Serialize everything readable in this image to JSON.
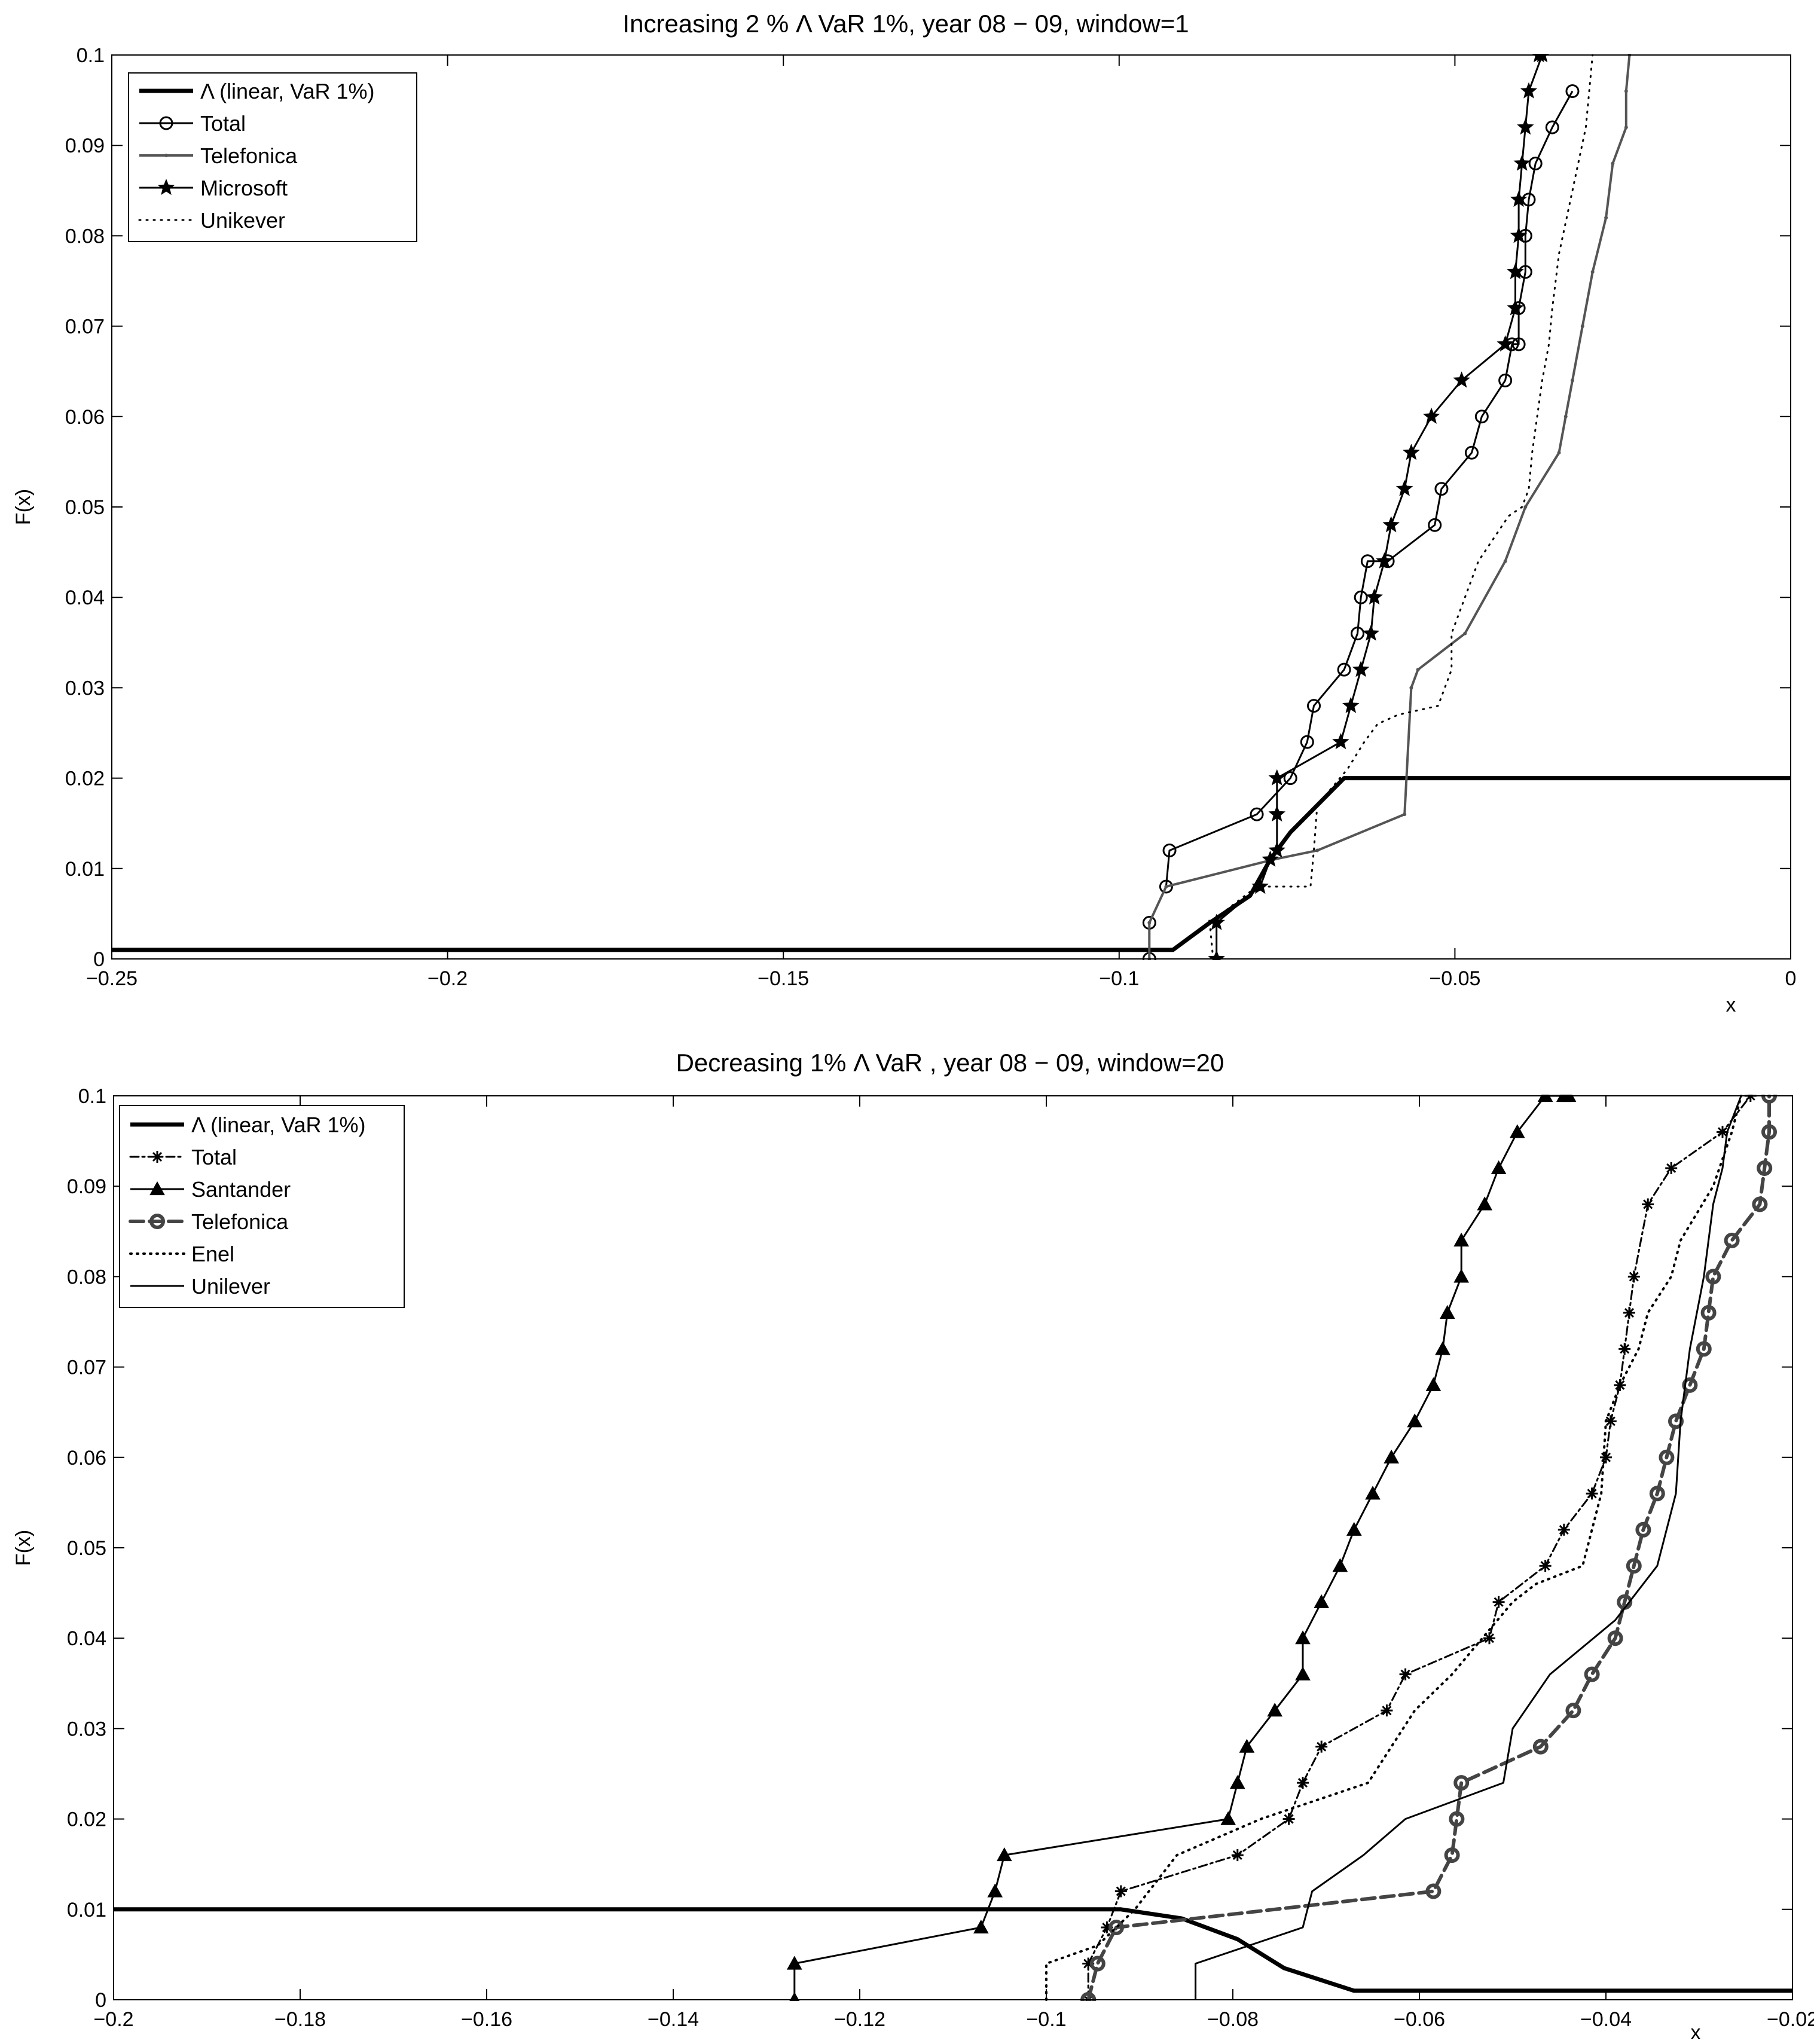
{
  "chart_data": [
    {
      "type": "line",
      "title": "Increasing 2 % Λ VaR 1%, year 08 − 09, window=1",
      "xlabel": "x",
      "ylabel": "F(x)",
      "xlim": [
        -0.25,
        0
      ],
      "ylim": [
        0,
        0.1
      ],
      "xticks": [
        -0.25,
        -0.2,
        -0.15,
        -0.1,
        -0.05,
        0
      ],
      "xtick_labels": [
        "−0.25",
        "−0.2",
        "−0.15",
        "−0.1",
        "−0.05",
        "0"
      ],
      "yticks": [
        0,
        0.01,
        0.02,
        0.03,
        0.04,
        0.05,
        0.06,
        0.07,
        0.08,
        0.09,
        0.1
      ],
      "ytick_labels": [
        "0",
        "0.01",
        "0.02",
        "0.03",
        "0.04",
        "0.05",
        "0.06",
        "0.07",
        "0.08",
        "0.09",
        "0.1"
      ],
      "grid": false,
      "legend_position": "top-left",
      "series": [
        {
          "name": "Λ (linear, VaR 1%)",
          "color": "#000000",
          "width": 7,
          "dash": "",
          "marker": "none",
          "x": [
            -0.25,
            -0.092,
            -0.0865,
            -0.0805,
            -0.0775,
            -0.0745,
            -0.0665,
            0
          ],
          "y": [
            0.001,
            0.001,
            0.004,
            0.007,
            0.011,
            0.014,
            0.02,
            0.02
          ]
        },
        {
          "name": "Total",
          "color": "#000000",
          "width": 3,
          "dash": "",
          "marker": "circle",
          "x": [
            -0.0955,
            -0.0955,
            -0.093,
            -0.0925,
            -0.0795,
            -0.0745,
            -0.072,
            -0.071,
            -0.0665,
            -0.0645,
            -0.064,
            -0.063,
            -0.06,
            -0.053,
            -0.052,
            -0.0475,
            -0.046,
            -0.0425,
            -0.0415,
            -0.0405,
            -0.0405,
            -0.0395,
            -0.0395,
            -0.039,
            -0.038,
            -0.0355,
            -0.0325
          ],
          "y": [
            0,
            0.004,
            0.008,
            0.012,
            0.016,
            0.02,
            0.024,
            0.028,
            0.032,
            0.036,
            0.04,
            0.044,
            0.044,
            0.048,
            0.052,
            0.056,
            0.06,
            0.064,
            0.068,
            0.068,
            0.072,
            0.076,
            0.08,
            0.084,
            0.088,
            0.092,
            0.096
          ]
        },
        {
          "name": "Telefonica",
          "color": "#555555",
          "width": 4,
          "dash": "",
          "marker": "dot",
          "x": [
            -0.0955,
            -0.0955,
            -0.093,
            -0.077,
            -0.0705,
            -0.0575,
            -0.0565,
            -0.0555,
            -0.0485,
            -0.0425,
            -0.0395,
            -0.0345,
            -0.0335,
            -0.0325,
            -0.031,
            -0.0295,
            -0.0275,
            -0.0265,
            -0.0245,
            -0.0245,
            -0.024
          ],
          "y": [
            0,
            0.004,
            0.008,
            0.011,
            0.012,
            0.016,
            0.03,
            0.032,
            0.036,
            0.044,
            0.05,
            0.056,
            0.06,
            0.064,
            0.07,
            0.076,
            0.082,
            0.088,
            0.092,
            0.096,
            0.1
          ]
        },
        {
          "name": "Microsoft",
          "color": "#000000",
          "width": 3,
          "dash": "",
          "marker": "star",
          "x": [
            -0.0855,
            -0.0855,
            -0.079,
            -0.0775,
            -0.0765,
            -0.0765,
            -0.0765,
            -0.067,
            -0.0655,
            -0.064,
            -0.0625,
            -0.062,
            -0.0605,
            -0.0595,
            -0.0575,
            -0.0565,
            -0.0535,
            -0.049,
            -0.0425,
            -0.041,
            -0.041,
            -0.0405,
            -0.0405,
            -0.04,
            -0.0395,
            -0.039,
            -0.037,
            -0.0375
          ],
          "y": [
            0,
            0.004,
            0.008,
            0.011,
            0.012,
            0.016,
            0.02,
            0.024,
            0.028,
            0.032,
            0.036,
            0.04,
            0.044,
            0.048,
            0.052,
            0.056,
            0.06,
            0.064,
            0.068,
            0.072,
            0.076,
            0.08,
            0.084,
            0.088,
            0.092,
            0.096,
            0.1,
            0.1
          ]
        },
        {
          "name": "Unikever",
          "color": "#000000",
          "width": 3,
          "dash": "2 10",
          "marker": "none",
          "x": [
            -0.086,
            -0.0865,
            -0.0795,
            -0.0715,
            -0.071,
            -0.0705,
            -0.066,
            -0.0635,
            -0.0615,
            -0.0585,
            -0.0525,
            -0.0505,
            -0.0505,
            -0.0465,
            -0.042,
            -0.04,
            -0.039,
            -0.0385,
            -0.037,
            -0.036,
            -0.0355,
            -0.0345,
            -0.0325,
            -0.0305,
            -0.0295
          ],
          "y": [
            0,
            0.004,
            0.008,
            0.008,
            0.012,
            0.017,
            0.021,
            0.024,
            0.026,
            0.027,
            0.028,
            0.032,
            0.036,
            0.044,
            0.049,
            0.05,
            0.052,
            0.056,
            0.064,
            0.068,
            0.072,
            0.078,
            0.085,
            0.092,
            0.1
          ]
        }
      ]
    },
    {
      "type": "line",
      "title": "Decreasing 1%  Λ VaR , year 08 − 09, window=20",
      "xlabel": "x",
      "ylabel": "F(x)",
      "xlim": [
        -0.2,
        -0.02
      ],
      "ylim": [
        0,
        0.1
      ],
      "xticks": [
        -0.2,
        -0.18,
        -0.16,
        -0.14,
        -0.12,
        -0.1,
        -0.08,
        -0.06,
        -0.04,
        -0.02
      ],
      "xtick_labels": [
        "−0.2",
        "−0.18",
        "−0.16",
        "−0.14",
        "−0.12",
        "−0.1",
        "−0.08",
        "−0.06",
        "−0.04",
        "−0.02"
      ],
      "yticks": [
        0,
        0.01,
        0.02,
        0.03,
        0.04,
        0.05,
        0.06,
        0.07,
        0.08,
        0.09,
        0.1
      ],
      "ytick_labels": [
        "0",
        "0.01",
        "0.02",
        "0.03",
        "0.04",
        "0.05",
        "0.06",
        "0.07",
        "0.08",
        "0.09",
        "0.1"
      ],
      "grid": false,
      "legend_position": "top-left",
      "series": [
        {
          "name": "Λ (linear, VaR 1%)",
          "color": "#000000",
          "width": 7,
          "dash": "",
          "marker": "none",
          "x": [
            -0.2,
            -0.092,
            -0.0855,
            -0.0795,
            -0.0745,
            -0.067,
            -0.02
          ],
          "y": [
            0.01,
            0.01,
            0.009,
            0.0067,
            0.0035,
            0.001,
            0.001
          ]
        },
        {
          "name": "Total",
          "color": "#000000",
          "width": 3,
          "dash": "14 6 4 6",
          "marker": "asterisk",
          "x": [
            -0.0955,
            -0.0955,
            -0.0935,
            -0.092,
            -0.0795,
            -0.074,
            -0.0725,
            -0.0705,
            -0.0635,
            -0.0615,
            -0.0525,
            -0.0515,
            -0.0465,
            -0.0445,
            -0.0415,
            -0.04,
            -0.0395,
            -0.0385,
            -0.038,
            -0.0375,
            -0.037,
            -0.0355,
            -0.033,
            -0.0275,
            -0.0245
          ],
          "y": [
            0,
            0.004,
            0.008,
            0.012,
            0.016,
            0.02,
            0.024,
            0.028,
            0.032,
            0.036,
            0.04,
            0.044,
            0.048,
            0.052,
            0.056,
            0.06,
            0.064,
            0.068,
            0.072,
            0.076,
            0.08,
            0.088,
            0.092,
            0.096,
            0.1
          ]
        },
        {
          "name": "Santander",
          "color": "#000000",
          "width": 3,
          "dash": "",
          "marker": "triangle",
          "x": [
            -0.127,
            -0.127,
            -0.107,
            -0.1055,
            -0.1045,
            -0.0805,
            -0.0795,
            -0.0785,
            -0.0755,
            -0.0725,
            -0.0725,
            -0.0705,
            -0.0685,
            -0.067,
            -0.065,
            -0.063,
            -0.0605,
            -0.0585,
            -0.0575,
            -0.057,
            -0.0555,
            -0.0555,
            -0.053,
            -0.0515,
            -0.0495,
            -0.0465,
            -0.0445,
            -0.044
          ],
          "y": [
            0,
            0.004,
            0.008,
            0.012,
            0.016,
            0.02,
            0.024,
            0.028,
            0.032,
            0.036,
            0.04,
            0.044,
            0.048,
            0.052,
            0.056,
            0.06,
            0.064,
            0.068,
            0.072,
            0.076,
            0.08,
            0.084,
            0.088,
            0.092,
            0.096,
            0.1,
            0.1,
            0.1
          ]
        },
        {
          "name": "Telefonica",
          "color": "#444444",
          "width": 6,
          "dash": "22 10",
          "marker": "circle-thick",
          "x": [
            -0.0955,
            -0.0955,
            -0.0945,
            -0.0925,
            -0.0585,
            -0.0565,
            -0.056,
            -0.0555,
            -0.047,
            -0.0435,
            -0.0415,
            -0.039,
            -0.038,
            -0.037,
            -0.036,
            -0.0345,
            -0.0335,
            -0.0325,
            -0.031,
            -0.0295,
            -0.029,
            -0.0285,
            -0.0265,
            -0.0235,
            -0.023,
            -0.0225,
            -0.0225
          ],
          "y": [
            0,
            0,
            0.004,
            0.008,
            0.012,
            0.016,
            0.02,
            0.024,
            0.028,
            0.032,
            0.036,
            0.04,
            0.044,
            0.048,
            0.052,
            0.056,
            0.06,
            0.064,
            0.068,
            0.072,
            0.076,
            0.08,
            0.084,
            0.088,
            0.092,
            0.096,
            0.1
          ]
        },
        {
          "name": "Enel",
          "color": "#000000",
          "width": 4,
          "dash": "2 9",
          "marker": "none",
          "x": [
            -0.1,
            -0.1,
            -0.0945,
            -0.0905,
            -0.086,
            -0.077,
            -0.0655,
            -0.0605,
            -0.0565,
            -0.05,
            -0.0475,
            -0.0425,
            -0.0405,
            -0.04,
            -0.0385,
            -0.0365,
            -0.0355,
            -0.033,
            -0.032,
            -0.0285,
            -0.0265,
            -0.0255
          ],
          "y": [
            0,
            0.004,
            0.006,
            0.01,
            0.016,
            0.02,
            0.024,
            0.032,
            0.036,
            0.044,
            0.046,
            0.048,
            0.056,
            0.064,
            0.068,
            0.072,
            0.076,
            0.08,
            0.084,
            0.09,
            0.096,
            0.1
          ]
        },
        {
          "name": "Unilever",
          "color": "#000000",
          "width": 3,
          "dash": "",
          "marker": "none",
          "x": [
            -0.084,
            -0.084,
            -0.0725,
            -0.0715,
            -0.066,
            -0.0615,
            -0.051,
            -0.05,
            -0.046,
            -0.039,
            -0.0345,
            -0.0325,
            -0.032,
            -0.031,
            -0.0295,
            -0.0285,
            -0.0275,
            -0.027,
            -0.0255
          ],
          "y": [
            0,
            0.004,
            0.008,
            0.012,
            0.016,
            0.02,
            0.024,
            0.03,
            0.036,
            0.042,
            0.048,
            0.056,
            0.064,
            0.072,
            0.08,
            0.088,
            0.092,
            0.096,
            0.1
          ]
        }
      ]
    }
  ]
}
